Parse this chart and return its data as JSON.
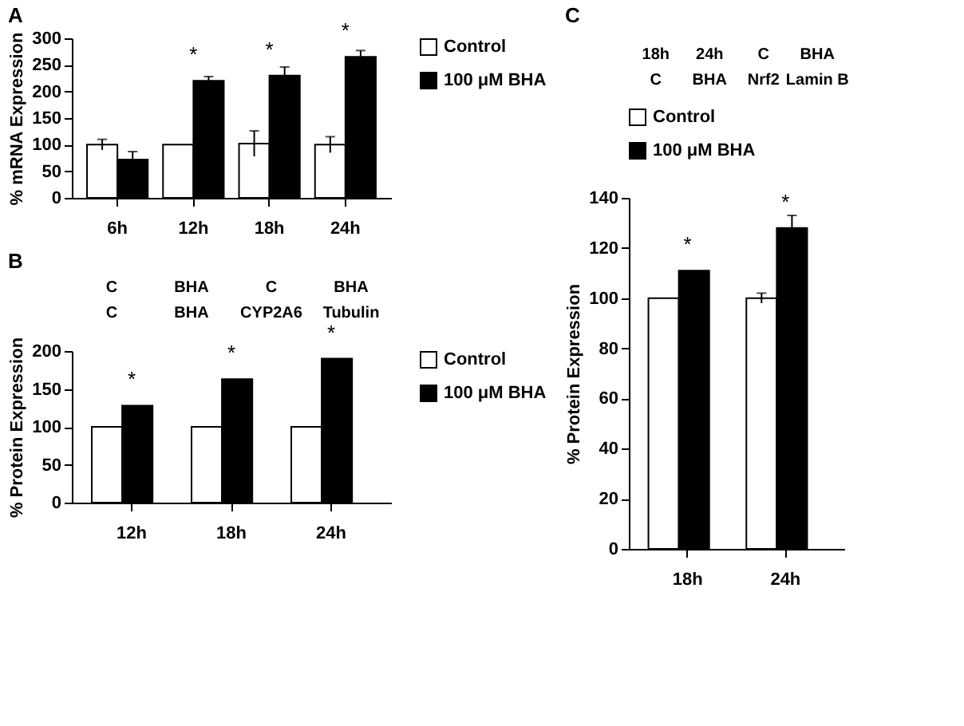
{
  "chart_data": [
    {
      "type": "bar",
      "title": "A",
      "ylabel": "% mRNA Expression",
      "categories": [
        "6h",
        "12h",
        "18h",
        "24h"
      ],
      "series": [
        {
          "name": "Control",
          "color": "#ffffff",
          "values": [
            100,
            100,
            102,
            100
          ],
          "errors": [
            10,
            null,
            24,
            15
          ]
        },
        {
          "name": "100 μM BHA",
          "color": "#000000",
          "values": [
            72,
            220,
            230,
            265
          ],
          "errors": [
            15,
            8,
            16,
            12
          ]
        }
      ],
      "ylim": [
        0,
        300
      ],
      "yticks": [
        0,
        50,
        100,
        150,
        200,
        250,
        300
      ],
      "legend": "right",
      "grid": false,
      "annotations": [
        {
          "text": "*",
          "x": "12h",
          "y": 220
        },
        {
          "text": "*",
          "x": "18h",
          "y": 230
        },
        {
          "text": "*",
          "x": "24h",
          "y": 265
        }
      ]
    },
    {
      "type": "bar",
      "title": "B",
      "ylabel": "% Protein Expression",
      "categories": [
        "12h",
        "18h",
        "24h"
      ],
      "series": [
        {
          "name": "Control",
          "color": "#ffffff",
          "values": [
            100,
            100,
            100
          ]
        },
        {
          "name": "100 μM BHA",
          "color": "#000000",
          "values": [
            128,
            163,
            190
          ]
        }
      ],
      "ylim": [
        0,
        200
      ],
      "yticks": [
        0,
        50,
        100,
        150,
        200
      ],
      "legend": "right",
      "grid": false,
      "annotations": [
        "C",
        "BHA",
        "C",
        "BHA",
        "C",
        "BHA",
        "CYP2A6",
        "Tubulin",
        {
          "text": "*",
          "x": "12h",
          "y": 128
        },
        {
          "text": "*",
          "x": "18h",
          "y": 163
        },
        {
          "text": "*",
          "x": "24h",
          "y": 190
        }
      ]
    },
    {
      "type": "bar",
      "title": "C",
      "ylabel": "% Protein Expression",
      "categories": [
        "18h",
        "24h"
      ],
      "series": [
        {
          "name": "Control",
          "color": "#ffffff",
          "values": [
            100,
            100
          ],
          "errors": [
            null,
            2
          ]
        },
        {
          "name": "100 μM BHA",
          "color": "#000000",
          "values": [
            111,
            128
          ],
          "errors": [
            null,
            5
          ]
        }
      ],
      "ylim": [
        0,
        140
      ],
      "yticks": [
        0,
        20,
        40,
        60,
        80,
        100,
        120,
        140
      ],
      "legend": "top left",
      "grid": false,
      "annotations": [
        "18h",
        "24h",
        "C",
        "BHA",
        "C",
        "BHA",
        "Nrf2",
        "Lamin B",
        {
          "text": "*",
          "x": "18h",
          "y": 111
        },
        {
          "text": "*",
          "x": "24h",
          "y": 128
        }
      ]
    }
  ]
}
